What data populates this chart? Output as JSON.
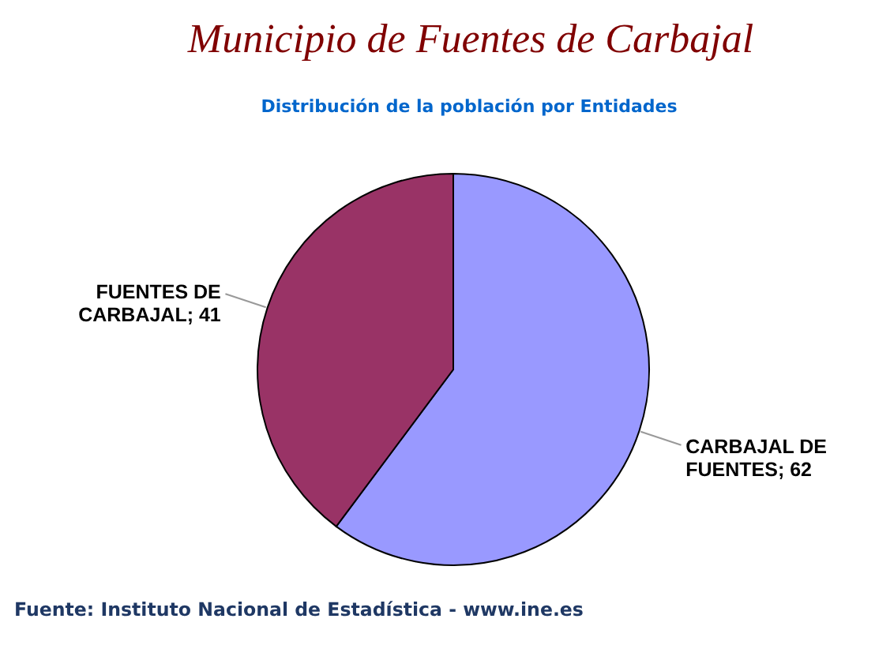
{
  "chart_data": {
    "type": "pie",
    "title": "Municipio de Fuentes de Carbajal",
    "subtitle": "Distribución de la población por Entidades",
    "categories": [
      "CARBAJAL DE FUENTES; 62",
      "FUENTES DE CARBAJAL; 41"
    ],
    "values": [
      62,
      41
    ],
    "colors": [
      "#9999ff",
      "#993366"
    ],
    "annotations": [
      "Fuente: Instituto Nacional de Estadística - www.ine.es"
    ]
  }
}
